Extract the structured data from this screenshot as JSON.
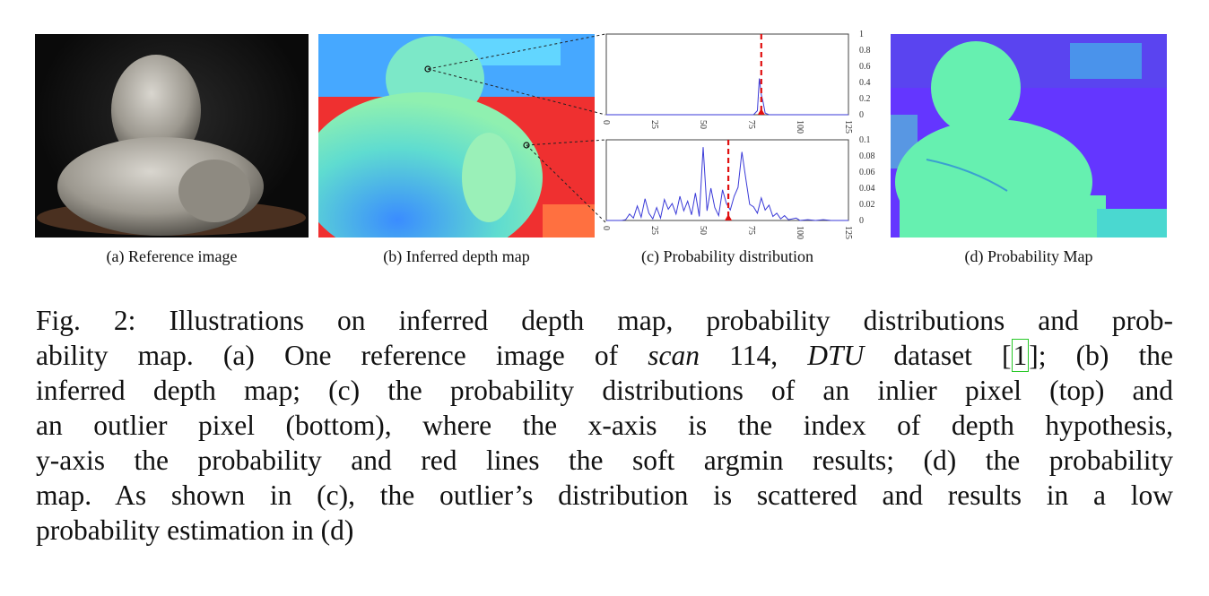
{
  "captions": {
    "a": "(a) Reference image",
    "b": "(b) Inferred depth map",
    "c": "(c) Probability distribution",
    "d": "(d) Probability Map"
  },
  "chart_data": [
    {
      "type": "line",
      "x_ticks": [
        "0",
        "25",
        "50",
        "75",
        "100",
        "125"
      ],
      "y_ticks": [
        "0",
        "0.2",
        "0.4",
        "0.6",
        "0.8",
        "1"
      ],
      "ylim": [
        0,
        1
      ],
      "xlim": [
        0,
        125
      ],
      "series": [
        {
          "x": [
            0,
            76,
            78,
            79,
            80,
            81,
            82,
            84,
            125
          ],
          "y": [
            0,
            0,
            0.05,
            0.45,
            0.25,
            0.15,
            0.02,
            0,
            0
          ]
        }
      ],
      "soft_argmin": 80,
      "colors": {
        "line": "#3a3ad8",
        "marker": "#e01010"
      }
    },
    {
      "type": "line",
      "x_ticks": [
        "0",
        "25",
        "50",
        "75",
        "100",
        "125"
      ],
      "y_ticks": [
        "0",
        "0.02",
        "0.04",
        "0.06",
        "0.08",
        "0.1"
      ],
      "ylim": [
        0,
        0.1
      ],
      "xlim": [
        0,
        125
      ],
      "series": [
        {
          "x": [
            0,
            8,
            10,
            12,
            14,
            16,
            18,
            20,
            22,
            24,
            26,
            28,
            30,
            32,
            34,
            36,
            38,
            40,
            42,
            44,
            46,
            48,
            50,
            52,
            54,
            56,
            58,
            60,
            62,
            64,
            66,
            68,
            70,
            72,
            74,
            76,
            78,
            80,
            82,
            84,
            86,
            88,
            90,
            92,
            94,
            96,
            98,
            100,
            104,
            108,
            112,
            116,
            120,
            125
          ],
          "y": [
            0,
            0,
            0.001,
            0.008,
            0.003,
            0.018,
            0.004,
            0.027,
            0.009,
            0.002,
            0.016,
            0.003,
            0.026,
            0.014,
            0.021,
            0.008,
            0.03,
            0.012,
            0.024,
            0.007,
            0.034,
            0.005,
            0.091,
            0.012,
            0.04,
            0.016,
            0.006,
            0.038,
            0.021,
            0.013,
            0.03,
            0.041,
            0.085,
            0.052,
            0.02,
            0.017,
            0.009,
            0.028,
            0.013,
            0.019,
            0.005,
            0.009,
            0.002,
            0.006,
            0.001,
            0.002,
            0.003,
            0,
            0.001,
            0,
            0.001,
            0,
            0,
            0
          ]
        }
      ],
      "soft_argmin": 63,
      "colors": {
        "line": "#3a3ad8",
        "marker": "#e01010"
      }
    }
  ],
  "figure_text": {
    "l1": "Fig. 2: Illustrations on inferred depth map, probability distributions and prob-",
    "l2a": "ability map. (a) One reference image of ",
    "l2_scan": "scan",
    "l2b": " 114, ",
    "l2_dtu": "DTU",
    "l2c": " dataset ",
    "l2_ref": "1",
    "l2d": "; (b) the",
    "l3": "inferred depth map; (c) the probability distributions of an inlier pixel (top) and",
    "l4": "an outlier pixel (bottom), where the x-axis is the index of depth hypothesis,",
    "l5": "y-axis the probability and red lines the soft argmin results; (d) the probability",
    "l6": "map. As shown in (c), the outlier’s distribution is scattered and results in a low",
    "l7": "probability estimation in (d)"
  }
}
